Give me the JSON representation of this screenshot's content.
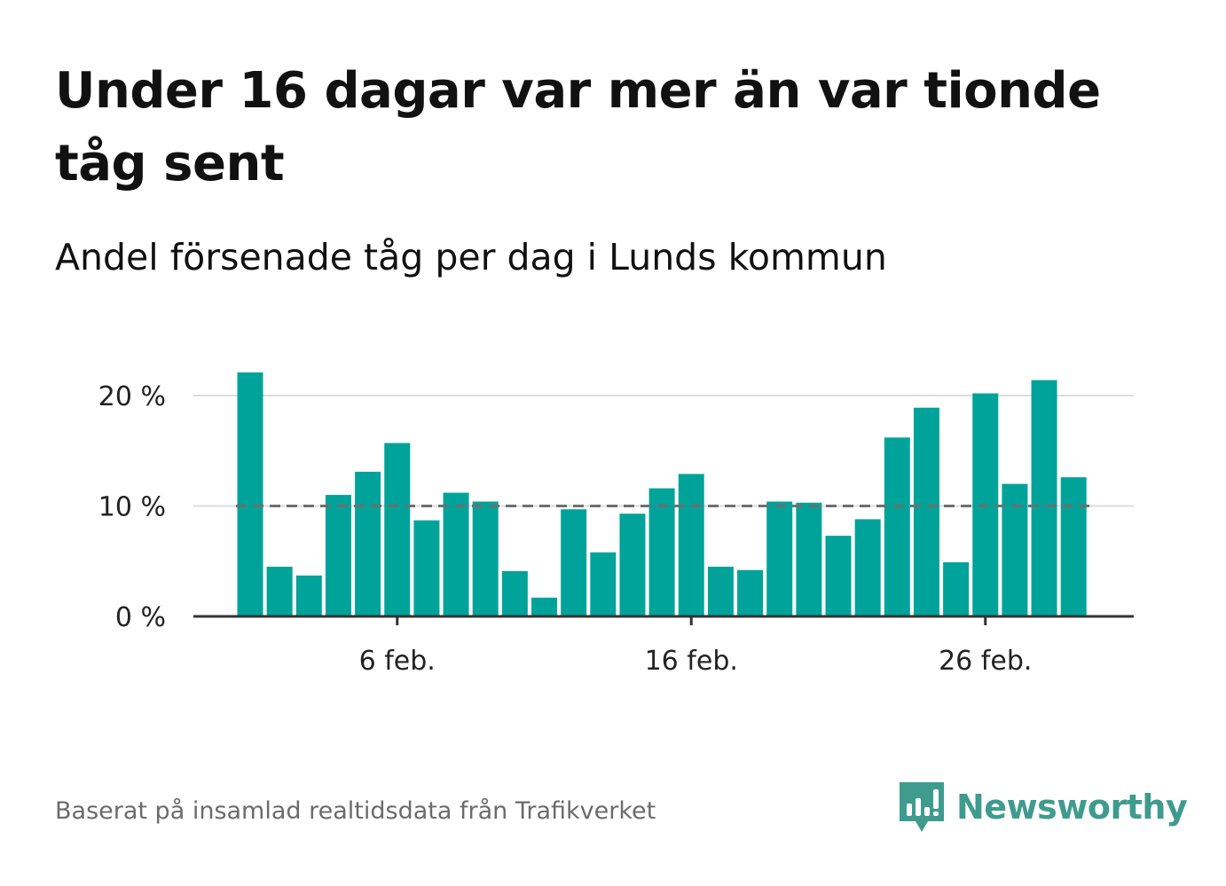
{
  "title": "Under 16 dagar var mer än var tionde tåg sent",
  "subtitle": "Andel försenade tåg per dag i Lunds kommun",
  "footer": {
    "source": "Baserat på insamlad realtidsdata från Trafikverket",
    "brand": "Newsworthy"
  },
  "colors": {
    "bar": "#00a39a",
    "reference_line": "#6f6f6f",
    "grid": "#dddddd",
    "axis": "#333333",
    "brand": "#3f9b8e"
  },
  "chart_data": {
    "type": "bar",
    "title": "Under 16 dagar var mer än var tionde tåg sent",
    "subtitle": "Andel försenade tåg per dag i Lunds kommun",
    "xlabel": "",
    "ylabel": "",
    "categories": [
      "1 feb.",
      "2 feb.",
      "3 feb.",
      "4 feb.",
      "5 feb.",
      "6 feb.",
      "7 feb.",
      "8 feb.",
      "9 feb.",
      "10 feb.",
      "11 feb.",
      "12 feb.",
      "13 feb.",
      "14 feb.",
      "15 feb.",
      "16 feb.",
      "17 feb.",
      "18 feb.",
      "19 feb.",
      "20 feb.",
      "21 feb.",
      "22 feb.",
      "23 feb.",
      "24 feb.",
      "25 feb.",
      "26 feb.",
      "27 feb.",
      "28 feb.",
      "29 feb."
    ],
    "values": [
      22.1,
      4.5,
      3.7,
      11.0,
      13.1,
      15.7,
      8.7,
      11.2,
      10.4,
      4.1,
      1.7,
      9.7,
      5.8,
      9.3,
      11.6,
      12.9,
      4.5,
      4.2,
      10.4,
      10.3,
      7.3,
      8.8,
      16.2,
      18.9,
      4.9,
      20.2,
      12.0,
      21.4,
      12.6
    ],
    "unit": "%",
    "ylim": [
      0,
      22.5
    ],
    "yticks": [
      0,
      10,
      20
    ],
    "ytick_labels": [
      "0 %",
      "10 %",
      "20 %"
    ],
    "xtick_labels": [
      "6 feb.",
      "16 feb.",
      "26 feb."
    ],
    "xtick_positions": [
      "6 feb.",
      "16 feb.",
      "26 feb."
    ],
    "reference_line": 10,
    "grid": true,
    "legend": "none"
  }
}
